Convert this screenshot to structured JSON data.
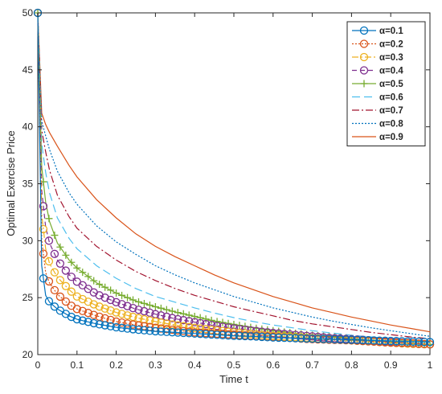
{
  "chart_data": {
    "type": "line",
    "xlabel": "Time  t",
    "ylabel": "Optimal Exercise Price",
    "xlim": [
      0,
      1
    ],
    "ylim": [
      20,
      50
    ],
    "xticks": [
      "0",
      "0.1",
      "0.2",
      "0.3",
      "0.4",
      "0.5",
      "0.6",
      "0.7",
      "0.8",
      "0.9",
      "1"
    ],
    "yticks": [
      "20",
      "25",
      "30",
      "35",
      "40",
      "45",
      "50"
    ],
    "grid": false,
    "legend_position": "top-right",
    "x": [
      0,
      0.01,
      0.02,
      0.03,
      0.05,
      0.08,
      0.1,
      0.15,
      0.2,
      0.25,
      0.3,
      0.35,
      0.4,
      0.45,
      0.5,
      0.55,
      0.6,
      0.65,
      0.7,
      0.75,
      0.8,
      0.85,
      0.9,
      0.95,
      1.0
    ],
    "series": [
      {
        "name": "α=0.1",
        "color": "#0072BD",
        "dash": "",
        "marker": "circle",
        "values": [
          50,
          27.8,
          25.2,
          24.6,
          24.0,
          23.4,
          23.1,
          22.7,
          22.4,
          22.2,
          22.05,
          21.95,
          21.85,
          21.75,
          21.65,
          21.6,
          21.5,
          21.45,
          21.4,
          21.35,
          21.3,
          21.25,
          21.2,
          21.15,
          21.1
        ]
      },
      {
        "name": "α=0.2",
        "color": "#D95319",
        "dash": "2,2",
        "marker": "circle",
        "values": [
          50,
          30.1,
          27.2,
          26.3,
          25.3,
          24.4,
          24.0,
          23.4,
          22.9,
          22.6,
          22.35,
          22.15,
          21.95,
          21.85,
          21.75,
          21.65,
          21.55,
          21.45,
          21.35,
          21.3,
          21.25,
          21.15,
          21.05,
          21.0,
          20.9
        ]
      },
      {
        "name": "α=0.3",
        "color": "#EDB120",
        "dash": "8,3,2,3",
        "marker": "circle",
        "values": [
          50,
          32.3,
          29.3,
          28.0,
          26.8,
          25.7,
          25.1,
          24.3,
          23.7,
          23.25,
          22.9,
          22.6,
          22.35,
          22.15,
          21.95,
          21.8,
          21.65,
          21.55,
          21.45,
          21.35,
          21.25,
          21.15,
          21.05,
          20.95,
          20.9
        ]
      },
      {
        "name": "α=0.4",
        "color": "#7E2F8E",
        "dash": "6,4",
        "marker": "circle",
        "values": [
          50,
          34.4,
          31.2,
          29.8,
          28.3,
          27.0,
          26.4,
          25.3,
          24.6,
          24.0,
          23.55,
          23.15,
          22.85,
          22.55,
          22.3,
          22.1,
          21.9,
          21.75,
          21.6,
          21.45,
          21.35,
          21.25,
          21.1,
          21.0,
          20.9
        ]
      },
      {
        "name": "α=0.5",
        "color": "#77AC30",
        "dash": "",
        "marker": "plus",
        "values": [
          50,
          36.5,
          33.4,
          31.7,
          29.8,
          28.3,
          27.6,
          26.3,
          25.4,
          24.7,
          24.2,
          23.75,
          23.35,
          22.95,
          22.65,
          22.35,
          22.1,
          21.9,
          21.7,
          21.55,
          21.4,
          21.25,
          21.1,
          21.0,
          20.9
        ]
      },
      {
        "name": "α=0.6",
        "color": "#4DBEEE",
        "dash": "10,5",
        "marker": "none",
        "values": [
          50,
          38.5,
          36.0,
          34.2,
          32.0,
          30.2,
          29.3,
          27.8,
          26.7,
          25.8,
          25.1,
          24.6,
          24.1,
          23.65,
          23.25,
          22.9,
          22.6,
          22.35,
          22.1,
          21.9,
          21.7,
          21.55,
          21.4,
          21.3,
          21.1
        ]
      },
      {
        "name": "α=0.7",
        "color": "#A2142F",
        "dash": "9,3,2,3",
        "marker": "none",
        "values": [
          50,
          39.7,
          37.8,
          36.2,
          34.0,
          32.1,
          31.1,
          29.5,
          28.3,
          27.3,
          26.5,
          25.8,
          25.2,
          24.7,
          24.2,
          23.8,
          23.4,
          23.0,
          22.7,
          22.45,
          22.2,
          21.95,
          21.75,
          21.55,
          21.4
        ]
      },
      {
        "name": "α=0.8",
        "color": "#0072BD",
        "dash": "2,2",
        "marker": "none",
        "values": [
          50,
          40.5,
          39.2,
          38.0,
          36.1,
          34.2,
          33.2,
          31.3,
          29.9,
          28.8,
          27.8,
          27.0,
          26.3,
          25.7,
          25.1,
          24.6,
          24.1,
          23.7,
          23.3,
          22.95,
          22.65,
          22.35,
          22.1,
          21.85,
          21.6
        ]
      },
      {
        "name": "α=0.9",
        "color": "#D95319",
        "dash": "",
        "marker": "none",
        "values": [
          50,
          41.2,
          40.2,
          39.5,
          38.3,
          36.6,
          35.6,
          33.6,
          32.0,
          30.6,
          29.5,
          28.6,
          27.8,
          27.0,
          26.3,
          25.7,
          25.1,
          24.6,
          24.1,
          23.7,
          23.3,
          22.95,
          22.6,
          22.3,
          22.0
        ]
      }
    ]
  }
}
